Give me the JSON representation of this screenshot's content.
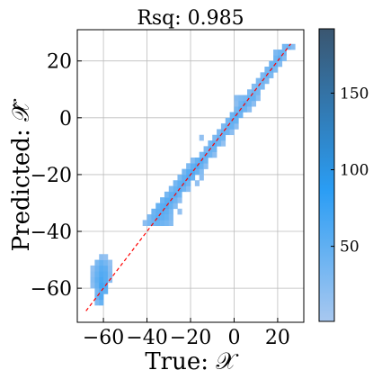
{
  "chart_data": {
    "type": "heatmap",
    "title": "Rsq: 0.985",
    "xlabel": "True: 𝒳",
    "ylabel": "Predicted: 𝒳̂",
    "xlim": [
      -72,
      32
    ],
    "ylim": [
      -72,
      31
    ],
    "xticks": [
      -60,
      -40,
      -20,
      0,
      20
    ],
    "yticks": [
      -60,
      -40,
      -20,
      0,
      20
    ],
    "xtick_labels": [
      "−60",
      "−40",
      "−20",
      "0",
      "20"
    ],
    "ytick_labels": [
      "−60",
      "−40",
      "−20",
      "0",
      "20"
    ],
    "grid": true,
    "bin_size": 2,
    "cells": [
      [
        -64,
        -66,
        30
      ],
      [
        -62,
        -66,
        45
      ],
      [
        -64,
        -64,
        40
      ],
      [
        -62,
        -64,
        60
      ],
      [
        -64,
        -62,
        35
      ],
      [
        -62,
        -62,
        55
      ],
      [
        -60,
        -62,
        50
      ],
      [
        -66,
        -60,
        20
      ],
      [
        -64,
        -60,
        45
      ],
      [
        -62,
        -60,
        70
      ],
      [
        -60,
        -60,
        60
      ],
      [
        -66,
        -58,
        25
      ],
      [
        -64,
        -58,
        50
      ],
      [
        -62,
        -58,
        65
      ],
      [
        -60,
        -58,
        55
      ],
      [
        -58,
        -58,
        20
      ],
      [
        -66,
        -56,
        20
      ],
      [
        -64,
        -56,
        45
      ],
      [
        -62,
        -56,
        60
      ],
      [
        -60,
        -56,
        55
      ],
      [
        -58,
        -56,
        25
      ],
      [
        -66,
        -54,
        15
      ],
      [
        -64,
        -54,
        40
      ],
      [
        -62,
        -54,
        55
      ],
      [
        -60,
        -54,
        50
      ],
      [
        -58,
        -54,
        20
      ],
      [
        -64,
        -52,
        30
      ],
      [
        -62,
        -52,
        45
      ],
      [
        -60,
        -52,
        35
      ],
      [
        -58,
        -52,
        15
      ],
      [
        -62,
        -50,
        20
      ],
      [
        -60,
        -50,
        15
      ],
      [
        -42,
        -38,
        20
      ],
      [
        -40,
        -38,
        35
      ],
      [
        -38,
        -38,
        40
      ],
      [
        -36,
        -38,
        45
      ],
      [
        -34,
        -38,
        40
      ],
      [
        -32,
        -38,
        35
      ],
      [
        -30,
        -38,
        25
      ],
      [
        -40,
        -36,
        30
      ],
      [
        -38,
        -36,
        45
      ],
      [
        -36,
        -36,
        55
      ],
      [
        -34,
        -36,
        50
      ],
      [
        -32,
        -36,
        45
      ],
      [
        -30,
        -36,
        30
      ],
      [
        -38,
        -34,
        40
      ],
      [
        -36,
        -34,
        50
      ],
      [
        -34,
        -34,
        55
      ],
      [
        -32,
        -34,
        50
      ],
      [
        -30,
        -34,
        35
      ],
      [
        -26,
        -34,
        15
      ],
      [
        -36,
        -32,
        45
      ],
      [
        -34,
        -32,
        55
      ],
      [
        -32,
        -32,
        60
      ],
      [
        -30,
        -32,
        45
      ],
      [
        -28,
        -32,
        25
      ],
      [
        -34,
        -30,
        40
      ],
      [
        -32,
        -30,
        55
      ],
      [
        -30,
        -30,
        55
      ],
      [
        -28,
        -30,
        40
      ],
      [
        -26,
        -30,
        20
      ],
      [
        -32,
        -28,
        35
      ],
      [
        -30,
        -28,
        50
      ],
      [
        -28,
        -28,
        55
      ],
      [
        -26,
        -28,
        40
      ],
      [
        -30,
        -26,
        30
      ],
      [
        -28,
        -26,
        45
      ],
      [
        -26,
        -26,
        55
      ],
      [
        -24,
        -26,
        40
      ],
      [
        -22,
        -26,
        20
      ],
      [
        -28,
        -24,
        35
      ],
      [
        -26,
        -24,
        50
      ],
      [
        -24,
        -24,
        55
      ],
      [
        -22,
        -24,
        40
      ],
      [
        -18,
        -24,
        15
      ],
      [
        -26,
        -22,
        30
      ],
      [
        -24,
        -22,
        50
      ],
      [
        -22,
        -22,
        60
      ],
      [
        -20,
        -22,
        45
      ],
      [
        -16,
        -22,
        20
      ],
      [
        -24,
        -20,
        35
      ],
      [
        -22,
        -20,
        55
      ],
      [
        -20,
        -20,
        60
      ],
      [
        -18,
        -20,
        45
      ],
      [
        -16,
        -20,
        25
      ],
      [
        -22,
        -18,
        30
      ],
      [
        -20,
        -18,
        50
      ],
      [
        -18,
        -18,
        60
      ],
      [
        -16,
        -18,
        45
      ],
      [
        -14,
        -18,
        20
      ],
      [
        -20,
        -16,
        25
      ],
      [
        -18,
        -16,
        45
      ],
      [
        -16,
        -16,
        55
      ],
      [
        -14,
        -16,
        40
      ],
      [
        -16,
        -14,
        35
      ],
      [
        -14,
        -14,
        50
      ],
      [
        -12,
        -14,
        40
      ],
      [
        -10,
        -14,
        20
      ],
      [
        -14,
        -12,
        30
      ],
      [
        -12,
        -12,
        45
      ],
      [
        -10,
        -12,
        40
      ],
      [
        -12,
        -10,
        35
      ],
      [
        -10,
        -10,
        50
      ],
      [
        -8,
        -10,
        40
      ],
      [
        -6,
        -10,
        15
      ],
      [
        -10,
        -8,
        30
      ],
      [
        -8,
        -8,
        45
      ],
      [
        -6,
        -8,
        40
      ],
      [
        -16,
        -8,
        15
      ],
      [
        -8,
        -6,
        30
      ],
      [
        -6,
        -6,
        45
      ],
      [
        -4,
        -6,
        40
      ],
      [
        -2,
        -6,
        20
      ],
      [
        -6,
        -4,
        30
      ],
      [
        -4,
        -4,
        45
      ],
      [
        -2,
        -4,
        45
      ],
      [
        0,
        -4,
        20
      ],
      [
        -4,
        -2,
        35
      ],
      [
        -2,
        -2,
        50
      ],
      [
        0,
        -2,
        45
      ],
      [
        -2,
        0,
        40
      ],
      [
        0,
        0,
        55
      ],
      [
        2,
        0,
        40
      ],
      [
        0,
        2,
        35
      ],
      [
        2,
        2,
        50
      ],
      [
        4,
        2,
        40
      ],
      [
        6,
        2,
        20
      ],
      [
        0,
        4,
        20
      ],
      [
        2,
        4,
        40
      ],
      [
        4,
        4,
        50
      ],
      [
        6,
        4,
        40
      ],
      [
        8,
        4,
        20
      ],
      [
        0,
        6,
        25
      ],
      [
        2,
        6,
        30
      ],
      [
        4,
        6,
        35
      ],
      [
        6,
        6,
        45
      ],
      [
        8,
        6,
        45
      ],
      [
        10,
        6,
        20
      ],
      [
        6,
        8,
        30
      ],
      [
        8,
        8,
        40
      ],
      [
        10,
        8,
        35
      ],
      [
        8,
        10,
        25
      ],
      [
        10,
        10,
        35
      ],
      [
        12,
        10,
        30
      ],
      [
        10,
        12,
        30
      ],
      [
        12,
        12,
        40
      ],
      [
        14,
        12,
        30
      ],
      [
        12,
        14,
        30
      ],
      [
        14,
        14,
        45
      ],
      [
        16,
        14,
        30
      ],
      [
        14,
        16,
        35
      ],
      [
        16,
        16,
        45
      ],
      [
        18,
        16,
        30
      ],
      [
        16,
        18,
        40
      ],
      [
        18,
        18,
        45
      ],
      [
        20,
        18,
        25
      ],
      [
        18,
        20,
        40
      ],
      [
        20,
        20,
        50
      ],
      [
        22,
        20,
        25
      ],
      [
        18,
        22,
        30
      ],
      [
        20,
        22,
        40
      ],
      [
        22,
        22,
        40
      ],
      [
        22,
        24,
        35
      ],
      [
        24,
        24,
        40
      ],
      [
        26,
        24,
        25
      ]
    ],
    "colorbar": {
      "min": 1,
      "max": 192,
      "ticks": [
        50,
        100,
        150
      ],
      "tick_labels": [
        "50",
        "100",
        "150"
      ],
      "colors": [
        "#a8c8f0",
        "#2a9df4",
        "#3a5670"
      ]
    },
    "reference_line": {
      "from": [
        -68,
        -68
      ],
      "to": [
        26,
        26
      ],
      "color": "#ff0000",
      "style": "dashed"
    },
    "fit_color": "#ff0000"
  }
}
